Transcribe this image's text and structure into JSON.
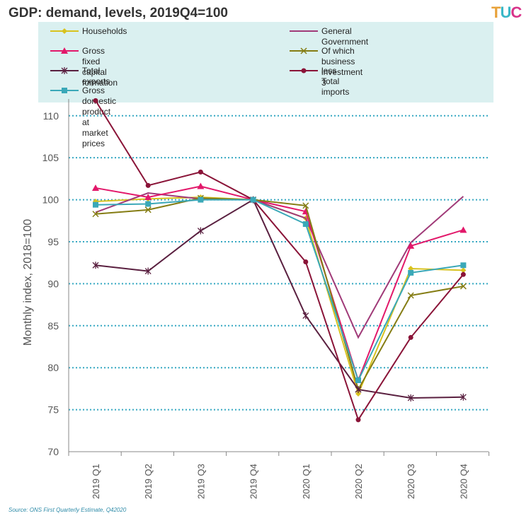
{
  "title": "GDP: demand, levels, 2019Q4=100",
  "logo": {
    "text": "TUC",
    "colors": [
      "#e8a23a",
      "#3ab8c8",
      "#d8348a"
    ]
  },
  "source": "Source: ONS First Quarterly Estimate, Q42020",
  "chart_data": {
    "type": "line",
    "title": "GDP: demand, levels, 2019Q4=100",
    "xlabel": "",
    "ylabel": "Monthly index, 2018=100",
    "ylim": [
      70,
      112
    ],
    "yticks": [
      70,
      75,
      80,
      85,
      90,
      95,
      100,
      105,
      110
    ],
    "grid": "horizontal dotted",
    "legend_position": "top",
    "categories": [
      "2019 Q1",
      "2019 Q2",
      "2019 Q3",
      "2019 Q4",
      "2020 Q1",
      "2020 Q2",
      "2020 Q3",
      "2020 Q4"
    ],
    "series": [
      {
        "name": "Households",
        "color": "#d8c21e",
        "marker": "diamond",
        "values": [
          99.8,
          100.1,
          100.3,
          100.0,
          97.8,
          76.9,
          91.8,
          91.6
        ]
      },
      {
        "name": "General Government",
        "color": "#a03a78",
        "marker": "none",
        "values": [
          98.5,
          100.8,
          100.1,
          100.0,
          97.8,
          83.6,
          94.9,
          100.4
        ]
      },
      {
        "name": "Gross fixed capital formation",
        "color": "#e2186a",
        "marker": "triangle",
        "values": [
          101.4,
          100.3,
          101.6,
          100.0,
          98.6,
          78.5,
          94.5,
          96.4
        ]
      },
      {
        "name": "Of which business investment 3",
        "color": "#857d14",
        "marker": "x",
        "values": [
          98.3,
          98.8,
          100.2,
          100.0,
          99.3,
          77.4,
          88.6,
          89.7
        ]
      },
      {
        "name": "Total exports",
        "color": "#5a2040",
        "marker": "star",
        "values": [
          92.2,
          91.5,
          96.3,
          100.0,
          86.2,
          77.4,
          76.4,
          76.5
        ]
      },
      {
        "name": "less\nTotal imports",
        "color": "#8a1438",
        "marker": "circle",
        "values": [
          111.8,
          101.7,
          103.3,
          100.0,
          92.6,
          73.8,
          83.6,
          91.1
        ]
      },
      {
        "name": "Gross domestic product at market prices",
        "color": "#3aa8b8",
        "marker": "square",
        "values": [
          99.4,
          99.5,
          100.0,
          100.0,
          97.1,
          78.5,
          91.3,
          92.2
        ]
      }
    ]
  }
}
